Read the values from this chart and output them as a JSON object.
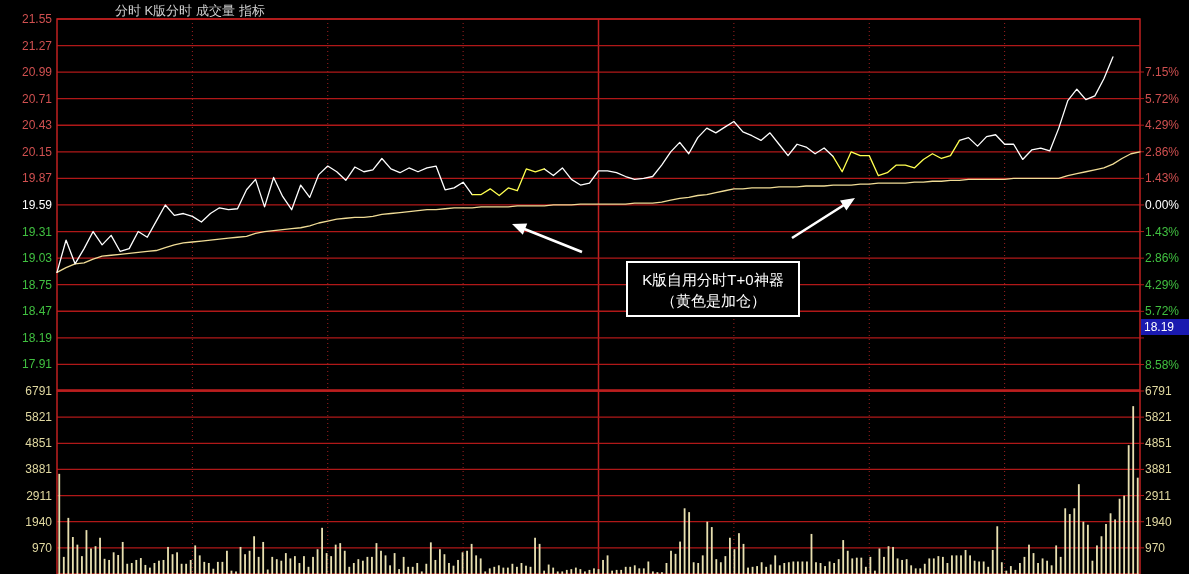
{
  "chart_data": [
    {
      "type": "line",
      "title": "分时  K版分时  成交量  指标",
      "categories": [
        null,
        null,
        null,
        null,
        null,
        null,
        null,
        null,
        null,
        null,
        null,
        null,
        null,
        null,
        null,
        null,
        null,
        null,
        null,
        null,
        null,
        null,
        null,
        null,
        null,
        null,
        null,
        null,
        null,
        null,
        null,
        null,
        null,
        null,
        null,
        null,
        null,
        null,
        null,
        null,
        null,
        null,
        null,
        null,
        null,
        null,
        null,
        null,
        null,
        null,
        null,
        null,
        null,
        null,
        null,
        null,
        null,
        null,
        null,
        null,
        null,
        null,
        null,
        null,
        null,
        null,
        null,
        null,
        null,
        null,
        null,
        null,
        null,
        null,
        null,
        null,
        null,
        null,
        null,
        null,
        null,
        null,
        null,
        null,
        null,
        null,
        null,
        null,
        null,
        null,
        null,
        null,
        null,
        null,
        null,
        null,
        null,
        null,
        null,
        null,
        null,
        null,
        null,
        null,
        null,
        null,
        null,
        null,
        null,
        null,
        null,
        null,
        null,
        null,
        null,
        null,
        null,
        null,
        null,
        null,
        null
      ],
      "ylim": [
        17.64,
        21.55
      ],
      "yticks": [
        17.91,
        18.19,
        18.47,
        18.75,
        19.03,
        19.31,
        19.59,
        19.87,
        20.15,
        20.43,
        20.71,
        20.99,
        21.27,
        21.55
      ],
      "y2lim": [
        -9.95,
        10.0
      ],
      "y2ticks": [
        {
          "value": -8.58,
          "label": "8.58%"
        },
        {
          "value": -7.15,
          "label": null
        },
        {
          "value": -5.72,
          "label": "5.72%"
        },
        {
          "value": -4.29,
          "label": "4.29%"
        },
        {
          "value": -2.86,
          "label": "2.86%"
        },
        {
          "value": -1.43,
          "label": "1.43%"
        },
        {
          "value": 0,
          "label": "0.00%"
        },
        {
          "value": 1.43,
          "label": "1.43%"
        },
        {
          "value": 2.86,
          "label": "2.86%"
        },
        {
          "value": 4.29,
          "label": "4.29%"
        },
        {
          "value": 5.72,
          "label": "5.72%"
        },
        {
          "value": 7.15,
          "label": "7.15%"
        }
      ],
      "grid": true,
      "series": [
        {
          "color": "#f0dc96",
          "values": [
            18.88,
            18.93,
            18.97,
            18.98,
            19.02,
            19.05,
            19.06,
            19.07,
            19.08,
            19.09,
            19.1,
            19.11,
            19.14,
            19.17,
            19.19,
            19.2,
            19.21,
            19.22,
            19.23,
            19.24,
            19.25,
            19.26,
            19.29,
            19.31,
            19.32,
            19.33,
            19.34,
            19.35,
            19.37,
            19.4,
            19.42,
            19.44,
            19.45,
            19.46,
            19.46,
            19.47,
            19.49,
            19.5,
            19.51,
            19.52,
            19.53,
            19.54,
            19.54,
            19.55,
            19.56,
            19.56,
            19.56,
            19.57,
            19.57,
            19.57,
            19.57,
            19.58,
            19.58,
            19.58,
            19.58,
            19.59,
            19.59,
            19.59,
            19.6,
            19.6,
            19.6,
            19.6,
            19.6,
            19.6,
            19.61,
            19.61,
            19.61,
            19.62,
            19.64,
            19.66,
            19.67,
            19.69,
            19.7,
            19.72,
            19.74,
            19.76,
            19.76,
            19.77,
            19.77,
            19.77,
            19.78,
            19.78,
            19.78,
            19.79,
            19.79,
            19.79,
            19.8,
            19.8,
            19.8,
            19.81,
            19.81,
            19.82,
            19.82,
            19.82,
            19.82,
            19.83,
            19.83,
            19.84,
            19.84,
            19.85,
            19.85,
            19.86,
            19.86,
            19.86,
            19.86,
            19.86,
            19.87,
            19.87,
            19.87,
            19.87,
            19.87,
            19.87,
            19.9,
            19.92,
            19.94,
            19.96,
            19.98,
            20.02,
            20.08,
            20.13,
            20.15
          ]
        },
        {
          "color": "#ffffff",
          "values": [
            18.88,
            19.22,
            18.97,
            19.13,
            19.31,
            19.17,
            19.27,
            19.1,
            19.13,
            19.31,
            19.25,
            19.42,
            19.59,
            19.48,
            19.5,
            19.47,
            19.41,
            19.5,
            19.56,
            19.54,
            19.55,
            19.75,
            19.86,
            19.57,
            19.88,
            19.68,
            19.54,
            19.8,
            19.67,
            19.91,
            20.0,
            19.94,
            19.85,
            19.99,
            19.94,
            19.96,
            20.08,
            19.97,
            19.93,
            19.98,
            19.94,
            19.98,
            20.0,
            19.75,
            19.77,
            19.83,
            19.7,
            null,
            null,
            null,
            null,
            null,
            null,
            null,
            19.97,
            19.9,
            19.98,
            19.86,
            19.8,
            19.82,
            19.95,
            19.95,
            19.93,
            19.89,
            19.86,
            19.87,
            19.89,
            20.01,
            20.15,
            20.25,
            20.13,
            20.3,
            20.4,
            20.35,
            20.41,
            20.47,
            20.36,
            20.32,
            20.27,
            20.35,
            20.23,
            20.11,
            20.23,
            20.2,
            20.13,
            20.19,
            20.1,
            null,
            null,
            null,
            null,
            null,
            null,
            null,
            null,
            null,
            null,
            null,
            null,
            null,
            20.27,
            20.3,
            20.21,
            20.31,
            20.33,
            20.23,
            20.23,
            20.07,
            20.17,
            20.19,
            20.16,
            20.4,
            20.69,
            20.81,
            20.7,
            20.74,
            20.92,
            21.15,
            null,
            null,
            null
          ]
        },
        {
          "color": "#ffff50",
          "values": [
            null,
            null,
            null,
            null,
            null,
            null,
            null,
            null,
            null,
            null,
            null,
            null,
            null,
            null,
            null,
            null,
            null,
            null,
            null,
            null,
            null,
            null,
            null,
            null,
            null,
            null,
            null,
            null,
            null,
            null,
            null,
            null,
            null,
            null,
            null,
            null,
            null,
            null,
            null,
            null,
            null,
            null,
            null,
            null,
            null,
            null,
            19.7,
            19.7,
            19.76,
            19.69,
            19.77,
            19.74,
            19.97,
            19.94,
            19.97,
            null,
            null,
            null,
            null,
            null,
            null,
            null,
            null,
            null,
            null,
            null,
            null,
            null,
            null,
            null,
            null,
            null,
            null,
            null,
            null,
            null,
            null,
            null,
            null,
            null,
            null,
            null,
            null,
            null,
            null,
            null,
            null,
            null,
            null,
            null,
            null,
            null,
            null,
            null,
            null,
            null,
            null,
            null,
            null,
            null,
            null,
            null,
            null,
            null,
            null,
            null,
            null,
            null,
            null,
            null,
            null,
            null,
            null,
            null,
            null,
            null,
            null,
            null,
            null,
            null,
            null
          ]
        },
        {
          "color": "#ffff50",
          "values": [
            null,
            null,
            null,
            null,
            null,
            null,
            null,
            null,
            null,
            null,
            null,
            null,
            null,
            null,
            null,
            null,
            null,
            null,
            null,
            null,
            null,
            null,
            null,
            null,
            null,
            null,
            null,
            null,
            null,
            null,
            null,
            null,
            null,
            null,
            null,
            null,
            null,
            null,
            null,
            null,
            null,
            null,
            null,
            null,
            null,
            null,
            null,
            null,
            null,
            null,
            null,
            null,
            null,
            null,
            null,
            null,
            null,
            null,
            null,
            null,
            null,
            null,
            null,
            null,
            null,
            null,
            null,
            null,
            null,
            null,
            null,
            null,
            null,
            null,
            null,
            null,
            null,
            null,
            null,
            null,
            null,
            null,
            null,
            null,
            null,
            null,
            20.1,
            19.94,
            20.15,
            20.11,
            20.11,
            19.9,
            19.93,
            20.01,
            20.01,
            19.98,
            20.07,
            20.13,
            20.08,
            20.11,
            20.27,
            null,
            null,
            null,
            null,
            null,
            null,
            null,
            null,
            null,
            null,
            null,
            null,
            null,
            null,
            null,
            null,
            null,
            null,
            null,
            null
          ]
        }
      ],
      "annotations": [
        "K版自用分时T+0神器",
        "（黄色是加仓）",
        "18.19"
      ]
    },
    {
      "type": "bar",
      "categories": [
        null,
        null,
        null,
        null,
        null,
        null,
        null,
        null,
        null,
        null,
        null,
        null,
        null,
        null,
        null,
        null,
        null,
        null,
        null,
        null,
        null,
        null,
        null,
        null,
        null,
        null,
        null,
        null,
        null,
        null,
        null,
        null,
        null,
        null,
        null,
        null,
        null,
        null,
        null,
        null,
        null,
        null,
        null,
        null,
        null,
        null,
        null,
        null,
        null,
        null,
        null,
        null,
        null,
        null,
        null,
        null,
        null,
        null,
        null,
        null,
        null,
        null,
        null,
        null,
        null,
        null,
        null,
        null,
        null,
        null,
        null,
        null,
        null,
        null,
        null,
        null,
        null,
        null,
        null,
        null,
        null,
        null,
        null,
        null,
        null,
        null,
        null,
        null,
        null,
        null,
        null,
        null,
        null,
        null,
        null,
        null,
        null,
        null,
        null,
        null,
        null,
        null,
        null,
        null,
        null,
        null,
        null,
        null,
        null,
        null,
        null,
        null,
        null,
        null,
        null,
        null,
        null,
        null,
        null,
        null,
        null,
        null,
        null,
        null,
        null,
        null,
        null,
        null,
        null,
        null,
        null,
        null,
        null,
        null,
        null,
        null,
        null,
        null,
        null,
        null,
        null,
        null,
        null,
        null,
        null,
        null,
        null,
        null,
        null,
        null,
        null,
        null,
        null,
        null,
        null,
        null,
        null,
        null,
        null,
        null,
        null,
        null,
        null,
        null,
        null,
        null,
        null,
        null,
        null,
        null,
        null,
        null,
        null,
        null,
        null,
        null,
        null,
        null,
        null,
        null,
        null,
        null,
        null,
        null,
        null,
        null,
        null,
        null,
        null,
        null,
        null,
        null,
        null,
        null,
        null,
        null,
        null,
        null,
        null,
        null,
        null,
        null,
        null,
        null,
        null,
        null,
        null,
        null,
        null,
        null,
        null,
        null,
        null,
        null,
        null,
        null,
        null,
        null,
        null,
        null,
        null,
        null,
        null,
        null,
        null,
        null,
        null,
        null,
        null,
        null,
        null,
        null,
        null,
        null,
        null,
        null,
        null,
        null,
        null
      ],
      "ylim": [
        0,
        6791
      ],
      "yticks": [
        970,
        1940,
        2911,
        3881,
        4851,
        5821,
        6791
      ],
      "y2lim": [
        0,
        6791
      ],
      "y2ticks": [
        970,
        1940,
        2911,
        3881,
        4851,
        5821,
        6791
      ],
      "grid": true,
      "color": "#e8e0b0",
      "values": [
        3716,
        635,
        2083,
        1373,
        1089,
        663,
        1629,
        947,
        1032,
        1345,
        564,
        521,
        805,
        706,
        1189,
        379,
        408,
        521,
        592,
        336,
        237,
        408,
        493,
        521,
        1004,
        734,
        805,
        379,
        379,
        521,
        1061,
        691,
        450,
        408,
        195,
        450,
        450,
        862,
        124,
        95,
        1004,
        734,
        862,
        1401,
        635,
        1189,
        166,
        635,
        550,
        493,
        776,
        578,
        663,
        408,
        663,
        266,
        635,
        919,
        1714,
        776,
        663,
        1089,
        1146,
        862,
        266,
        408,
        550,
        493,
        635,
        635,
        1146,
        862,
        691,
        322,
        776,
        180,
        635,
        266,
        266,
        408,
        95,
        379,
        1174,
        521,
        919,
        734,
        408,
        308,
        521,
        805,
        862,
        1117,
        691,
        578,
        95,
        209,
        266,
        322,
        237,
        237,
        379,
        266,
        408,
        308,
        266,
        1345,
        1117,
        124,
        351,
        237,
        95,
        95,
        152,
        180,
        237,
        180,
        95,
        152,
        209,
        180,
        521,
        691,
        124,
        152,
        152,
        266,
        266,
        322,
        209,
        209,
        464,
        95,
        67,
        67,
        408,
        862,
        748,
        1203,
        2438,
        2296,
        436,
        408,
        691,
        1941,
        1742,
        550,
        436,
        663,
        1345,
        919,
        1515,
        1117,
        237,
        266,
        294,
        436,
        266,
        351,
        691,
        322,
        408,
        436,
        464,
        464,
        464,
        464,
        1487,
        436,
        408,
        294,
        464,
        408,
        550,
        1259,
        862,
        578,
        606,
        606,
        266,
        635,
        124,
        947,
        635,
        1032,
        1004,
        578,
        521,
        550,
        322,
        209,
        209,
        379,
        578,
        578,
        663,
        635,
        408,
        691,
        691,
        691,
        890,
        691,
        493,
        464,
        464,
        266,
        890,
        1771,
        436,
        124,
        294,
        152,
        408,
        635,
        1089,
        776,
        408,
        578,
        493,
        322,
        1061,
        635,
        2438,
        2225,
        2438,
        3333,
        1941,
        1827,
        493,
        1061,
        1401,
        1856,
        2253,
        2026,
        2793,
        2907,
        4781,
        6229,
        3574
      ]
    }
  ]
}
